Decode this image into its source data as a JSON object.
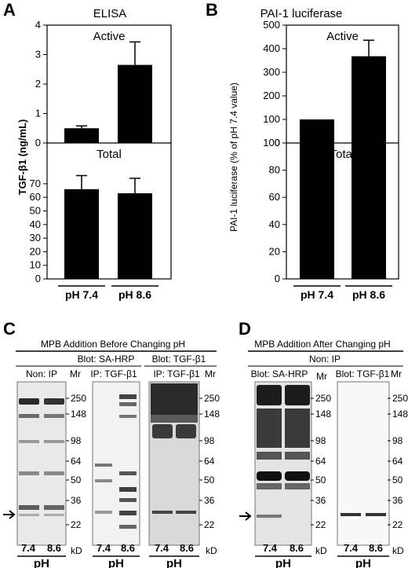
{
  "panels": {
    "A": {
      "letter": "A",
      "title": "ELISA"
    },
    "B": {
      "letter": "B",
      "title": "PAI-1 luciferase"
    },
    "C": {
      "letter": "C",
      "header": "MPB Addition Before Changing pH",
      "blot_sa": "Blot: SA-HRP",
      "blot_tgf": "Blot: TGF-β1",
      "non_ip": "Non: IP",
      "ip_tgf_1": "IP: TGF-β1",
      "ip_tgf_2": "IP: TGF-β1",
      "mr_label": "Mr",
      "kd_label": "kD",
      "lanes": [
        "7.4",
        "8.6"
      ],
      "ph_label": "pH"
    },
    "D": {
      "letter": "D",
      "header": "MPB Addition After Changing pH",
      "non_ip": "Non: IP",
      "blot_sa": "Blot: SA-HRP",
      "blot_tgf": "Blot: TGF-β1",
      "mr_label": "Mr",
      "kd_label": "kD",
      "lanes": [
        "7.4",
        "8.6"
      ],
      "ph_label": "pH"
    }
  },
  "markers": [
    "250",
    "148",
    "98",
    "64",
    "50",
    "36",
    "22"
  ],
  "chart_data": [
    {
      "type": "bar",
      "panel": "A",
      "title": "ELISA",
      "ylabel": "TGF-β1 (ng/mL)",
      "categories": [
        "pH 7.4",
        "pH 8.6"
      ],
      "subplots": [
        {
          "label": "Active",
          "ylim": [
            0,
            4
          ],
          "yticks": [
            0,
            1,
            2,
            3,
            4
          ],
          "values": [
            0.5,
            2.65
          ],
          "errors": [
            0.08,
            0.78
          ]
        },
        {
          "label": "Total",
          "ylim": [
            0,
            100
          ],
          "yticks": [
            0,
            10,
            20,
            30,
            40,
            50,
            60,
            70
          ],
          "values": [
            66,
            63
          ],
          "errors": [
            10,
            11
          ]
        }
      ]
    },
    {
      "type": "bar",
      "panel": "B",
      "title": "PAI-1 luciferase",
      "ylabel": "PAI-1 luciferase (% of pH 7.4 value)",
      "categories": [
        "pH 7.4",
        "pH 8.6"
      ],
      "subplots": [
        {
          "label": "Active",
          "ylim": [
            0,
            500
          ],
          "yticks": [
            0,
            100,
            200,
            300,
            400,
            500
          ],
          "values": [
            100,
            368
          ],
          "errors": [
            0,
            68
          ]
        },
        {
          "label": "Total",
          "ylim": [
            0,
            100
          ],
          "yticks": [
            0,
            20,
            40,
            60,
            80,
            100
          ],
          "values": [
            100,
            101
          ],
          "errors": [
            0,
            6
          ]
        }
      ]
    }
  ]
}
